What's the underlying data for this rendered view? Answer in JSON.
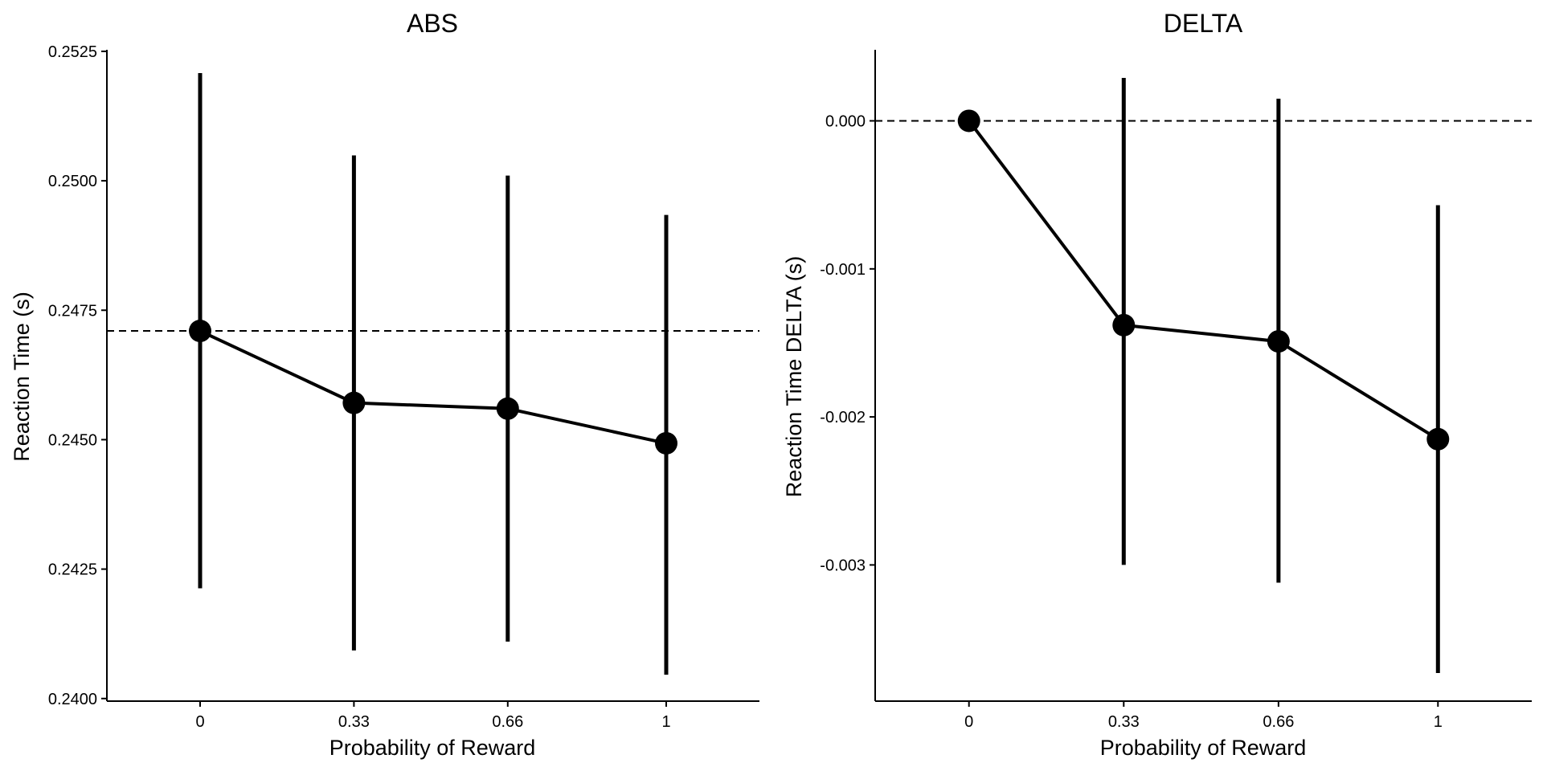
{
  "chart_data": [
    {
      "type": "line",
      "title": "ABS",
      "xlabel": "Probability of Reward",
      "ylabel": "Reaction Time (s)",
      "categories": [
        "0",
        "0.33",
        "0.66",
        "1"
      ],
      "x": [
        0,
        0.33,
        0.66,
        1
      ],
      "values": [
        0.2471,
        0.24571,
        0.2456,
        0.24493
      ],
      "error_low": [
        0.24213,
        0.24093,
        0.2411,
        0.24046
      ],
      "error_high": [
        0.25208,
        0.25049,
        0.2501,
        0.24934
      ],
      "reference_line": {
        "y": 0.2471,
        "style": "dashed"
      },
      "ylim": [
        0.23995,
        0.25253
      ],
      "xlim": [
        -0.2,
        1.2
      ],
      "yticks": [
        0.24,
        0.2425,
        0.245,
        0.2475,
        0.25,
        0.2525
      ],
      "ytick_labels": [
        "0.2400",
        "0.2425",
        "0.2450",
        "0.2475",
        "0.2500",
        "0.2525"
      ],
      "grid": false,
      "legend": "none",
      "color": "#000000"
    },
    {
      "type": "line",
      "title": "DELTA",
      "xlabel": "Probability of Reward",
      "ylabel": "Reaction Time DELTA (s)",
      "categories": [
        "0",
        "0.33",
        "0.66",
        "1"
      ],
      "x": [
        0,
        0.33,
        0.66,
        1
      ],
      "values": [
        0.0,
        -0.00138,
        -0.00149,
        -0.00215
      ],
      "error_low": [
        0.0,
        -0.003,
        -0.00312,
        -0.00373
      ],
      "error_high": [
        0.0,
        0.00029,
        0.00015,
        -0.00057
      ],
      "reference_line": {
        "y": 0.0,
        "style": "dashed"
      },
      "ylim": [
        -0.00392,
        0.00048
      ],
      "xlim": [
        -0.2,
        1.2
      ],
      "yticks": [
        -0.003,
        -0.002,
        -0.001,
        0.0
      ],
      "ytick_labels": [
        "-0.003",
        "-0.002",
        "-0.001",
        "0.000"
      ],
      "grid": false,
      "legend": "none",
      "color": "#000000"
    }
  ]
}
